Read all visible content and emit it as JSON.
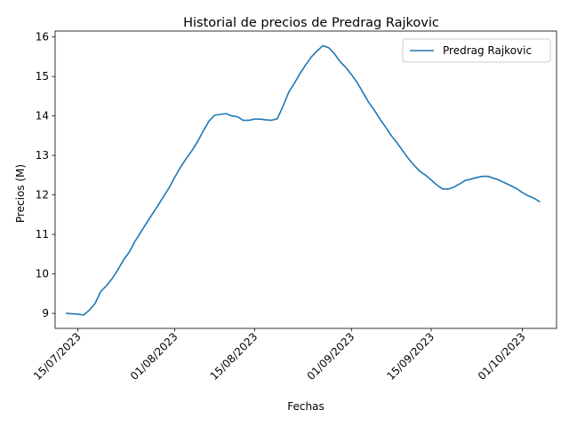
{
  "chart_data": {
    "type": "line",
    "title": "Historial de precios de Predrag Rajkovic",
    "xlabel": "Fechas",
    "ylabel": "Precios (M)",
    "x_ticks": [
      "15/07/2023",
      "01/08/2023",
      "15/08/2023",
      "01/09/2023",
      "15/09/2023",
      "01/10/2023"
    ],
    "y_ticks": [
      "9",
      "10",
      "11",
      "12",
      "13",
      "14",
      "15",
      "16"
    ],
    "xlim": [
      "2023-07-11",
      "2023-10-07"
    ],
    "ylim": [
      8.62,
      16.15
    ],
    "grid": false,
    "legend_position": "top-right",
    "series": [
      {
        "name": "Predrag Rajkovic",
        "color": "#1f77b4",
        "points": [
          [
            "2023-07-13",
            9.0
          ],
          [
            "2023-07-14",
            8.99
          ],
          [
            "2023-07-15",
            8.98
          ],
          [
            "2023-07-16",
            8.96
          ],
          [
            "2023-07-17",
            9.08
          ],
          [
            "2023-07-18",
            9.25
          ],
          [
            "2023-07-19",
            9.55
          ],
          [
            "2023-07-20",
            9.7
          ],
          [
            "2023-07-21",
            9.88
          ],
          [
            "2023-07-22",
            10.1
          ],
          [
            "2023-07-23",
            10.35
          ],
          [
            "2023-07-24",
            10.55
          ],
          [
            "2023-07-25",
            10.82
          ],
          [
            "2023-07-26",
            11.05
          ],
          [
            "2023-07-27",
            11.28
          ],
          [
            "2023-07-28",
            11.5
          ],
          [
            "2023-07-29",
            11.72
          ],
          [
            "2023-07-30",
            11.95
          ],
          [
            "2023-07-31",
            12.18
          ],
          [
            "2023-08-01",
            12.45
          ],
          [
            "2023-08-02",
            12.7
          ],
          [
            "2023-08-03",
            12.92
          ],
          [
            "2023-08-04",
            13.12
          ],
          [
            "2023-08-05",
            13.35
          ],
          [
            "2023-08-06",
            13.62
          ],
          [
            "2023-08-07",
            13.87
          ],
          [
            "2023-08-08",
            14.02
          ],
          [
            "2023-08-09",
            14.04
          ],
          [
            "2023-08-10",
            14.06
          ],
          [
            "2023-08-11",
            14.0
          ],
          [
            "2023-08-12",
            13.98
          ],
          [
            "2023-08-13",
            13.89
          ],
          [
            "2023-08-14",
            13.89
          ],
          [
            "2023-08-15",
            13.92
          ],
          [
            "2023-08-16",
            13.92
          ],
          [
            "2023-08-17",
            13.9
          ],
          [
            "2023-08-18",
            13.89
          ],
          [
            "2023-08-19",
            13.93
          ],
          [
            "2023-08-20",
            14.25
          ],
          [
            "2023-08-21",
            14.6
          ],
          [
            "2023-08-22",
            14.83
          ],
          [
            "2023-08-23",
            15.08
          ],
          [
            "2023-08-24",
            15.3
          ],
          [
            "2023-08-25",
            15.5
          ],
          [
            "2023-08-26",
            15.65
          ],
          [
            "2023-08-27",
            15.78
          ],
          [
            "2023-08-28",
            15.73
          ],
          [
            "2023-08-29",
            15.58
          ],
          [
            "2023-08-30",
            15.38
          ],
          [
            "2023-08-31",
            15.23
          ],
          [
            "2023-09-01",
            15.05
          ],
          [
            "2023-09-02",
            14.85
          ],
          [
            "2023-09-03",
            14.6
          ],
          [
            "2023-09-04",
            14.35
          ],
          [
            "2023-09-05",
            14.15
          ],
          [
            "2023-09-06",
            13.92
          ],
          [
            "2023-09-07",
            13.72
          ],
          [
            "2023-09-08",
            13.5
          ],
          [
            "2023-09-09",
            13.32
          ],
          [
            "2023-09-10",
            13.12
          ],
          [
            "2023-09-11",
            12.92
          ],
          [
            "2023-09-12",
            12.75
          ],
          [
            "2023-09-13",
            12.6
          ],
          [
            "2023-09-14",
            12.5
          ],
          [
            "2023-09-15",
            12.38
          ],
          [
            "2023-09-16",
            12.25
          ],
          [
            "2023-09-17",
            12.15
          ],
          [
            "2023-09-18",
            12.15
          ],
          [
            "2023-09-19",
            12.2
          ],
          [
            "2023-09-20",
            12.28
          ],
          [
            "2023-09-21",
            12.37
          ],
          [
            "2023-09-22",
            12.4
          ],
          [
            "2023-09-23",
            12.44
          ],
          [
            "2023-09-24",
            12.47
          ],
          [
            "2023-09-25",
            12.47
          ],
          [
            "2023-09-26",
            12.42
          ],
          [
            "2023-09-27",
            12.37
          ],
          [
            "2023-09-28",
            12.3
          ],
          [
            "2023-09-29",
            12.23
          ],
          [
            "2023-09-30",
            12.16
          ],
          [
            "2023-10-01",
            12.06
          ],
          [
            "2023-10-02",
            11.98
          ],
          [
            "2023-10-03",
            11.92
          ],
          [
            "2023-10-04",
            11.83
          ]
        ]
      }
    ]
  }
}
